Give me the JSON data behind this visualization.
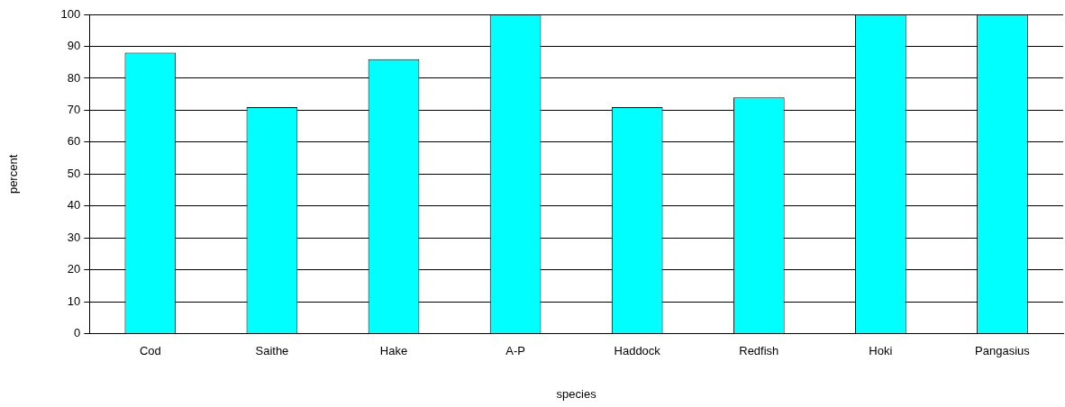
{
  "chart_data": {
    "type": "bar",
    "xlabel": "species",
    "ylabel": "percent",
    "categories": [
      "Cod",
      "Saithe",
      "Hake",
      "A-P",
      "Haddock",
      "Redfish",
      "Hoki",
      "Pangasius"
    ],
    "values": [
      88,
      71,
      86,
      100,
      71,
      74,
      100,
      100
    ],
    "color": "#00ffff",
    "ylim": [
      0,
      100
    ],
    "yticks": [
      0,
      10,
      20,
      30,
      40,
      50,
      60,
      70,
      80,
      90,
      100
    ],
    "grid": "y",
    "legend": false
  }
}
